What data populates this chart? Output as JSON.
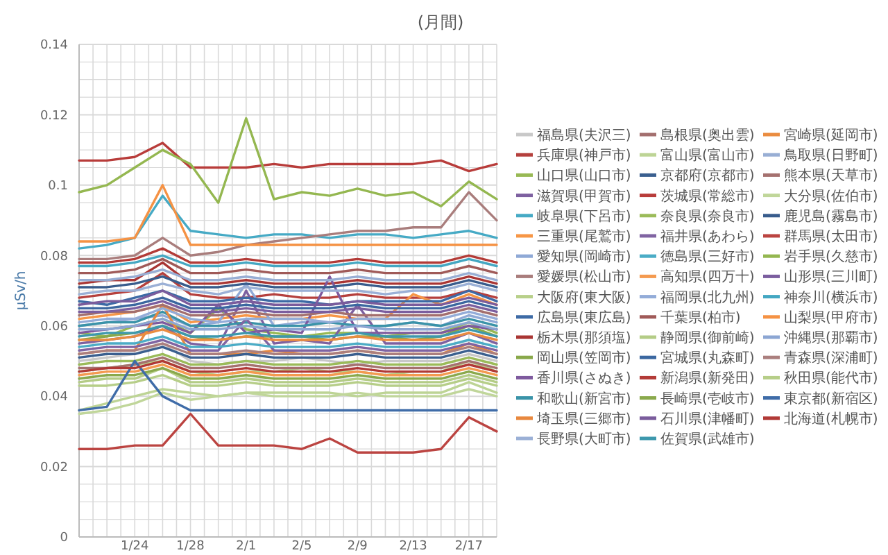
{
  "chart_data": {
    "type": "line",
    "title": "(月間)",
    "ylabel": "μSv/h",
    "grid": true,
    "legend": "right",
    "line_style": "solid",
    "marker": "none",
    "xlim": [
      "--01-20",
      "--02-19"
    ],
    "ylim": [
      0,
      0.14
    ],
    "xticks": [
      {
        "value": "--01-20",
        "label": null
      },
      {
        "value": "--01-21",
        "label": null
      },
      {
        "value": "--01-22",
        "label": null
      },
      {
        "value": "--01-23",
        "label": null
      },
      {
        "value": "--01-24",
        "label": "1/24"
      },
      {
        "value": "--01-25",
        "label": null
      },
      {
        "value": "--01-26",
        "label": null
      },
      {
        "value": "--01-27",
        "label": null
      },
      {
        "value": "--01-28",
        "label": "1/28"
      },
      {
        "value": "--01-29",
        "label": null
      },
      {
        "value": "--01-30",
        "label": null
      },
      {
        "value": "--01-31",
        "label": null
      },
      {
        "value": "--02-01",
        "label": "2/1"
      },
      {
        "value": "--02-02",
        "label": null
      },
      {
        "value": "--02-03",
        "label": null
      },
      {
        "value": "--02-04",
        "label": null
      },
      {
        "value": "--02-05",
        "label": "2/5"
      },
      {
        "value": "--02-06",
        "label": null
      },
      {
        "value": "--02-07",
        "label": null
      },
      {
        "value": "--02-08",
        "label": null
      },
      {
        "value": "--02-09",
        "label": "2/9"
      },
      {
        "value": "--02-10",
        "label": null
      },
      {
        "value": "--02-11",
        "label": null
      },
      {
        "value": "--02-12",
        "label": null
      },
      {
        "value": "--02-13",
        "label": "2/13"
      },
      {
        "value": "--02-14",
        "label": null
      },
      {
        "value": "--02-15",
        "label": null
      },
      {
        "value": "--02-16",
        "label": null
      },
      {
        "value": "--02-17",
        "label": "2/17"
      },
      {
        "value": "--02-18",
        "label": null
      },
      {
        "value": "--02-19",
        "label": null
      }
    ],
    "yticks": [
      0,
      {
        "value": 0.005,
        "label": null
      },
      {
        "value": 0.01,
        "label": null
      },
      {
        "value": 0.015,
        "label": null
      },
      0.02,
      {
        "value": 0.025,
        "label": null
      },
      {
        "value": 0.03,
        "label": null
      },
      {
        "value": 0.035,
        "label": null
      },
      0.04,
      {
        "value": 0.045,
        "label": null
      },
      {
        "value": 0.05,
        "label": null
      },
      {
        "value": 0.055,
        "label": null
      },
      0.06,
      {
        "value": 0.065,
        "label": null
      },
      {
        "value": 0.07,
        "label": null
      },
      {
        "value": 0.075,
        "label": null
      },
      0.08,
      {
        "value": 0.085,
        "label": null
      },
      {
        "value": 0.09,
        "label": null
      },
      {
        "value": 0.095,
        "label": null
      },
      0.1,
      {
        "value": 0.105,
        "label": null
      },
      {
        "value": 0.11,
        "label": null
      },
      {
        "value": 0.115,
        "label": null
      },
      0.12,
      {
        "value": 0.125,
        "label": null
      },
      {
        "value": 0.13,
        "label": null
      },
      {
        "value": 0.135,
        "label": null
      },
      0.14
    ],
    "x": [
      "--01-20",
      "--01-22",
      "--01-24",
      "--01-26",
      "--01-28",
      "--01-30",
      "--02-01",
      "--02-03",
      "--02-05",
      "--02-07",
      "--02-09",
      "--02-11",
      "--02-13",
      "--02-15",
      "--02-17",
      "--02-19"
    ],
    "series": [
      {
        "name": "福島県(夫沢三)",
        "color": "#c8c8c8",
        "values": [
          0.05,
          0.051,
          0.052,
          0.055,
          0.05,
          0.049,
          0.05,
          0.05,
          0.051,
          0.05,
          0.049,
          0.05,
          0.05,
          0.05,
          0.052,
          0.05
        ]
      },
      {
        "name": "兵庫県(神戸市)",
        "color": "#b5403d",
        "values": [
          0.068,
          0.069,
          0.07,
          0.075,
          0.069,
          0.068,
          0.068,
          0.069,
          0.068,
          0.068,
          0.069,
          0.068,
          0.068,
          0.068,
          0.07,
          0.068
        ]
      },
      {
        "name": "山口県(山口市)",
        "color": "#98b954",
        "values": [
          0.058,
          0.057,
          0.06,
          0.062,
          0.058,
          0.065,
          0.059,
          0.058,
          0.057,
          0.058,
          0.058,
          0.057,
          0.058,
          0.058,
          0.061,
          0.058
        ]
      },
      {
        "name": "滋賀県(甲賀市)",
        "color": "#7d60a0",
        "values": [
          0.055,
          0.056,
          0.057,
          0.06,
          0.055,
          0.054,
          0.07,
          0.055,
          0.056,
          0.055,
          0.066,
          0.055,
          0.055,
          0.055,
          0.058,
          0.055
        ]
      },
      {
        "name": "岐阜県(下呂市)",
        "color": "#46aac5",
        "values": [
          0.082,
          0.083,
          0.085,
          0.097,
          0.087,
          0.086,
          0.085,
          0.086,
          0.086,
          0.085,
          0.086,
          0.086,
          0.085,
          0.086,
          0.087,
          0.085
        ]
      },
      {
        "name": "三重県(尾鷲市)",
        "color": "#f79646",
        "values": [
          0.062,
          0.063,
          0.064,
          0.066,
          0.061,
          0.062,
          0.063,
          0.062,
          0.062,
          0.063,
          0.062,
          0.062,
          0.069,
          0.066,
          0.069,
          0.066
        ]
      },
      {
        "name": "愛知県(岡崎市)",
        "color": "#8fa9d6",
        "values": [
          0.06,
          0.061,
          0.062,
          0.063,
          0.06,
          0.061,
          0.072,
          0.06,
          0.061,
          0.061,
          0.06,
          0.06,
          0.061,
          0.06,
          0.063,
          0.061
        ]
      },
      {
        "name": "愛媛県(松山市)",
        "color": "#a97d7c",
        "values": [
          0.079,
          0.079,
          0.08,
          0.085,
          0.08,
          0.081,
          0.083,
          0.084,
          0.085,
          0.086,
          0.087,
          0.087,
          0.088,
          0.088,
          0.098,
          0.09
        ]
      },
      {
        "name": "大阪府(東大阪)",
        "color": "#b8d08a",
        "values": [
          0.047,
          0.048,
          0.049,
          0.05,
          0.047,
          0.046,
          0.047,
          0.047,
          0.048,
          0.047,
          0.047,
          0.046,
          0.047,
          0.047,
          0.05,
          0.047
        ]
      },
      {
        "name": "広島県(東広島)",
        "color": "#3d6aa5",
        "values": [
          0.067,
          0.066,
          0.068,
          0.07,
          0.067,
          0.067,
          0.068,
          0.067,
          0.067,
          0.066,
          0.067,
          0.067,
          0.067,
          0.067,
          0.07,
          0.067
        ]
      },
      {
        "name": "栃木県(那須塩)",
        "color": "#a93533",
        "values": [
          0.072,
          0.073,
          0.073,
          0.078,
          0.072,
          0.072,
          0.073,
          0.072,
          0.072,
          0.072,
          0.073,
          0.072,
          0.072,
          0.072,
          0.074,
          0.072
        ]
      },
      {
        "name": "岡山県(笠岡市)",
        "color": "#89a84a",
        "values": [
          0.056,
          0.057,
          0.058,
          0.06,
          0.057,
          0.056,
          0.057,
          0.057,
          0.057,
          0.056,
          0.057,
          0.057,
          0.056,
          0.057,
          0.06,
          0.057
        ]
      },
      {
        "name": "香川県(さぬき)",
        "color": "#7e5a9e",
        "values": [
          0.058,
          0.059,
          0.06,
          0.061,
          0.058,
          0.066,
          0.058,
          0.059,
          0.058,
          0.074,
          0.058,
          0.058,
          0.058,
          0.058,
          0.06,
          0.059
        ]
      },
      {
        "name": "和歌山(新宮市)",
        "color": "#3a93a8",
        "values": [
          0.06,
          0.061,
          0.061,
          0.064,
          0.06,
          0.06,
          0.061,
          0.06,
          0.06,
          0.061,
          0.06,
          0.06,
          0.061,
          0.06,
          0.062,
          0.06
        ]
      },
      {
        "name": "埼玉県(三郷市)",
        "color": "#e8883e",
        "values": [
          0.052,
          0.053,
          0.053,
          0.066,
          0.052,
          0.052,
          0.052,
          0.053,
          0.052,
          0.052,
          0.053,
          0.052,
          0.052,
          0.052,
          0.055,
          0.052
        ]
      },
      {
        "name": "長野県(大町市)",
        "color": "#9bb0d6",
        "values": [
          0.069,
          0.07,
          0.07,
          0.072,
          0.07,
          0.069,
          0.071,
          0.07,
          0.07,
          0.07,
          0.07,
          0.069,
          0.07,
          0.07,
          0.072,
          0.07
        ]
      },
      {
        "name": "島根県(奥出雲)",
        "color": "#a36f6e",
        "values": [
          0.063,
          0.064,
          0.064,
          0.066,
          0.063,
          0.063,
          0.064,
          0.063,
          0.063,
          0.064,
          0.063,
          0.063,
          0.063,
          0.063,
          0.065,
          0.063
        ]
      },
      {
        "name": "富山県(富山市)",
        "color": "#bdd495",
        "values": [
          0.036,
          0.038,
          0.04,
          0.042,
          0.041,
          0.04,
          0.041,
          0.041,
          0.041,
          0.041,
          0.04,
          0.041,
          0.041,
          0.041,
          0.044,
          0.041
        ]
      },
      {
        "name": "京都府(京都市)",
        "color": "#3a5f8f",
        "values": [
          0.051,
          0.052,
          0.052,
          0.054,
          0.051,
          0.051,
          0.052,
          0.051,
          0.051,
          0.051,
          0.052,
          0.051,
          0.051,
          0.051,
          0.053,
          0.051
        ]
      },
      {
        "name": "茨城県(常総市)",
        "color": "#b83c3a",
        "values": [
          0.107,
          0.107,
          0.108,
          0.112,
          0.105,
          0.105,
          0.105,
          0.106,
          0.105,
          0.106,
          0.106,
          0.106,
          0.106,
          0.107,
          0.104,
          0.106
        ]
      },
      {
        "name": "奈良県(奈良市)",
        "color": "#9bbb59",
        "values": [
          0.049,
          0.05,
          0.05,
          0.052,
          0.049,
          0.049,
          0.05,
          0.049,
          0.049,
          0.049,
          0.05,
          0.049,
          0.049,
          0.049,
          0.051,
          0.049
        ]
      },
      {
        "name": "福井県(あわら)",
        "color": "#8064a2",
        "values": [
          0.053,
          0.054,
          0.054,
          0.056,
          0.053,
          0.053,
          0.062,
          0.053,
          0.053,
          0.053,
          0.054,
          0.053,
          0.053,
          0.053,
          0.055,
          0.053
        ]
      },
      {
        "name": "徳島県(三好市)",
        "color": "#4bacc6",
        "values": [
          0.054,
          0.055,
          0.055,
          0.057,
          0.054,
          0.054,
          0.055,
          0.054,
          0.054,
          0.054,
          0.055,
          0.054,
          0.054,
          0.054,
          0.056,
          0.054
        ]
      },
      {
        "name": "高知県(四万十)",
        "color": "#f49a50",
        "values": [
          0.046,
          0.047,
          0.047,
          0.049,
          0.046,
          0.046,
          0.047,
          0.046,
          0.046,
          0.046,
          0.047,
          0.046,
          0.046,
          0.046,
          0.048,
          0.046
        ]
      },
      {
        "name": "福岡県(北九州)",
        "color": "#93acd8",
        "values": [
          0.061,
          0.062,
          0.062,
          0.065,
          0.062,
          0.061,
          0.062,
          0.062,
          0.062,
          0.061,
          0.062,
          0.062,
          0.062,
          0.062,
          0.064,
          0.062
        ]
      },
      {
        "name": "千葉県(柏市)",
        "color": "#a05a58",
        "values": [
          0.075,
          0.075,
          0.076,
          0.079,
          0.075,
          0.075,
          0.076,
          0.075,
          0.075,
          0.075,
          0.076,
          0.075,
          0.075,
          0.075,
          0.077,
          0.075
        ]
      },
      {
        "name": "静岡県(御前崎)",
        "color": "#b4cc86",
        "values": [
          0.044,
          0.045,
          0.045,
          0.048,
          0.044,
          0.044,
          0.045,
          0.044,
          0.044,
          0.044,
          0.045,
          0.044,
          0.044,
          0.044,
          0.046,
          0.044
        ]
      },
      {
        "name": "宮城県(丸森町)",
        "color": "#3b67a0",
        "values": [
          0.065,
          0.065,
          0.066,
          0.068,
          0.065,
          0.065,
          0.066,
          0.065,
          0.065,
          0.065,
          0.066,
          0.065,
          0.065,
          0.065,
          0.067,
          0.065
        ]
      },
      {
        "name": "新潟県(新発田)",
        "color": "#b33b37",
        "values": [
          0.078,
          0.078,
          0.079,
          0.082,
          0.078,
          0.078,
          0.079,
          0.078,
          0.078,
          0.078,
          0.079,
          0.078,
          0.078,
          0.078,
          0.08,
          0.078
        ]
      },
      {
        "name": "長崎県(壱岐市)",
        "color": "#8aa94c",
        "values": [
          0.045,
          0.046,
          0.046,
          0.048,
          0.045,
          0.045,
          0.046,
          0.045,
          0.045,
          0.045,
          0.046,
          0.045,
          0.045,
          0.045,
          0.047,
          0.045
        ]
      },
      {
        "name": "石川県(津幡町)",
        "color": "#7a5c9c",
        "values": [
          0.066,
          0.067,
          0.067,
          0.07,
          0.066,
          0.066,
          0.067,
          0.066,
          0.066,
          0.066,
          0.067,
          0.066,
          0.066,
          0.066,
          0.068,
          0.066
        ]
      },
      {
        "name": "佐賀県(武雄市)",
        "color": "#3d98ad",
        "values": [
          0.057,
          0.058,
          0.058,
          0.06,
          0.057,
          0.057,
          0.058,
          0.057,
          0.057,
          0.057,
          0.058,
          0.057,
          0.057,
          0.057,
          0.059,
          0.057
        ]
      },
      {
        "name": "宮崎県(延岡市)",
        "color": "#ea8c40",
        "values": [
          0.056,
          0.056,
          0.057,
          0.059,
          0.056,
          0.056,
          0.057,
          0.056,
          0.056,
          0.056,
          0.057,
          0.056,
          0.056,
          0.056,
          0.058,
          0.056
        ]
      },
      {
        "name": "鳥取県(日野町)",
        "color": "#98aed4",
        "values": [
          0.073,
          0.073,
          0.074,
          0.076,
          0.073,
          0.073,
          0.074,
          0.073,
          0.073,
          0.073,
          0.074,
          0.073,
          0.073,
          0.073,
          0.075,
          0.073
        ]
      },
      {
        "name": "熊本県(天草市)",
        "color": "#a5716f",
        "values": [
          0.048,
          0.048,
          0.049,
          0.051,
          0.048,
          0.048,
          0.049,
          0.048,
          0.048,
          0.048,
          0.049,
          0.048,
          0.048,
          0.048,
          0.05,
          0.048
        ]
      },
      {
        "name": "大分県(佐伯市)",
        "color": "#c0d69a",
        "values": [
          0.035,
          0.036,
          0.038,
          0.041,
          0.039,
          0.04,
          0.041,
          0.04,
          0.04,
          0.04,
          0.041,
          0.04,
          0.04,
          0.04,
          0.042,
          0.04
        ]
      },
      {
        "name": "鹿児島(霧島市)",
        "color": "#385c8c",
        "values": [
          0.071,
          0.071,
          0.072,
          0.074,
          0.071,
          0.071,
          0.072,
          0.071,
          0.071,
          0.071,
          0.072,
          0.071,
          0.071,
          0.071,
          0.073,
          0.071
        ]
      },
      {
        "name": "群馬県(太田市)",
        "color": "#bb4441",
        "values": [
          0.025,
          0.025,
          0.026,
          0.026,
          0.035,
          0.026,
          0.026,
          0.026,
          0.025,
          0.028,
          0.024,
          0.024,
          0.024,
          0.025,
          0.034,
          0.03
        ]
      },
      {
        "name": "岩手県(久慈市)",
        "color": "#94b750",
        "values": [
          0.098,
          0.1,
          0.105,
          0.11,
          0.106,
          0.095,
          0.119,
          0.096,
          0.098,
          0.097,
          0.099,
          0.097,
          0.098,
          0.094,
          0.101,
          0.096
        ]
      },
      {
        "name": "山形県(三川町)",
        "color": "#7b5e9f",
        "values": [
          0.064,
          0.064,
          0.065,
          0.067,
          0.064,
          0.064,
          0.065,
          0.064,
          0.064,
          0.064,
          0.065,
          0.064,
          0.064,
          0.064,
          0.066,
          0.064
        ]
      },
      {
        "name": "神奈川(横浜市)",
        "color": "#44a7c2",
        "values": [
          0.077,
          0.077,
          0.078,
          0.08,
          0.077,
          0.077,
          0.078,
          0.077,
          0.077,
          0.077,
          0.078,
          0.077,
          0.077,
          0.077,
          0.079,
          0.077
        ]
      },
      {
        "name": "山梨県(甲府市)",
        "color": "#f59244",
        "values": [
          0.084,
          0.084,
          0.085,
          0.1,
          0.083,
          0.083,
          0.083,
          0.083,
          0.083,
          0.083,
          0.083,
          0.083,
          0.083,
          0.083,
          0.083,
          0.083
        ]
      },
      {
        "name": "沖縄県(那覇市)",
        "color": "#8ca6d3",
        "values": [
          0.059,
          0.059,
          0.06,
          0.062,
          0.059,
          0.059,
          0.06,
          0.059,
          0.059,
          0.059,
          0.06,
          0.059,
          0.059,
          0.059,
          0.061,
          0.059
        ]
      },
      {
        "name": "青森県(深浦町)",
        "color": "#ab7f7e",
        "values": [
          0.052,
          0.053,
          0.053,
          0.055,
          0.052,
          0.052,
          0.053,
          0.052,
          0.052,
          0.052,
          0.053,
          0.052,
          0.052,
          0.052,
          0.054,
          0.052
        ]
      },
      {
        "name": "秋田県(能代市)",
        "color": "#b6ce88",
        "values": [
          0.043,
          0.043,
          0.044,
          0.046,
          0.043,
          0.043,
          0.044,
          0.043,
          0.043,
          0.043,
          0.044,
          0.043,
          0.043,
          0.043,
          0.045,
          0.043
        ]
      },
      {
        "name": "東京都(新宿区)",
        "color": "#3f6ca8",
        "values": [
          0.036,
          0.037,
          0.05,
          0.04,
          0.036,
          0.036,
          0.036,
          0.036,
          0.036,
          0.036,
          0.036,
          0.036,
          0.036,
          0.036,
          0.036,
          0.036
        ]
      },
      {
        "name": "北海道(札幌市)",
        "color": "#b13936",
        "values": [
          0.047,
          0.048,
          0.048,
          0.05,
          0.047,
          0.047,
          0.048,
          0.047,
          0.047,
          0.047,
          0.048,
          0.047,
          0.047,
          0.047,
          0.049,
          0.047
        ]
      }
    ]
  }
}
